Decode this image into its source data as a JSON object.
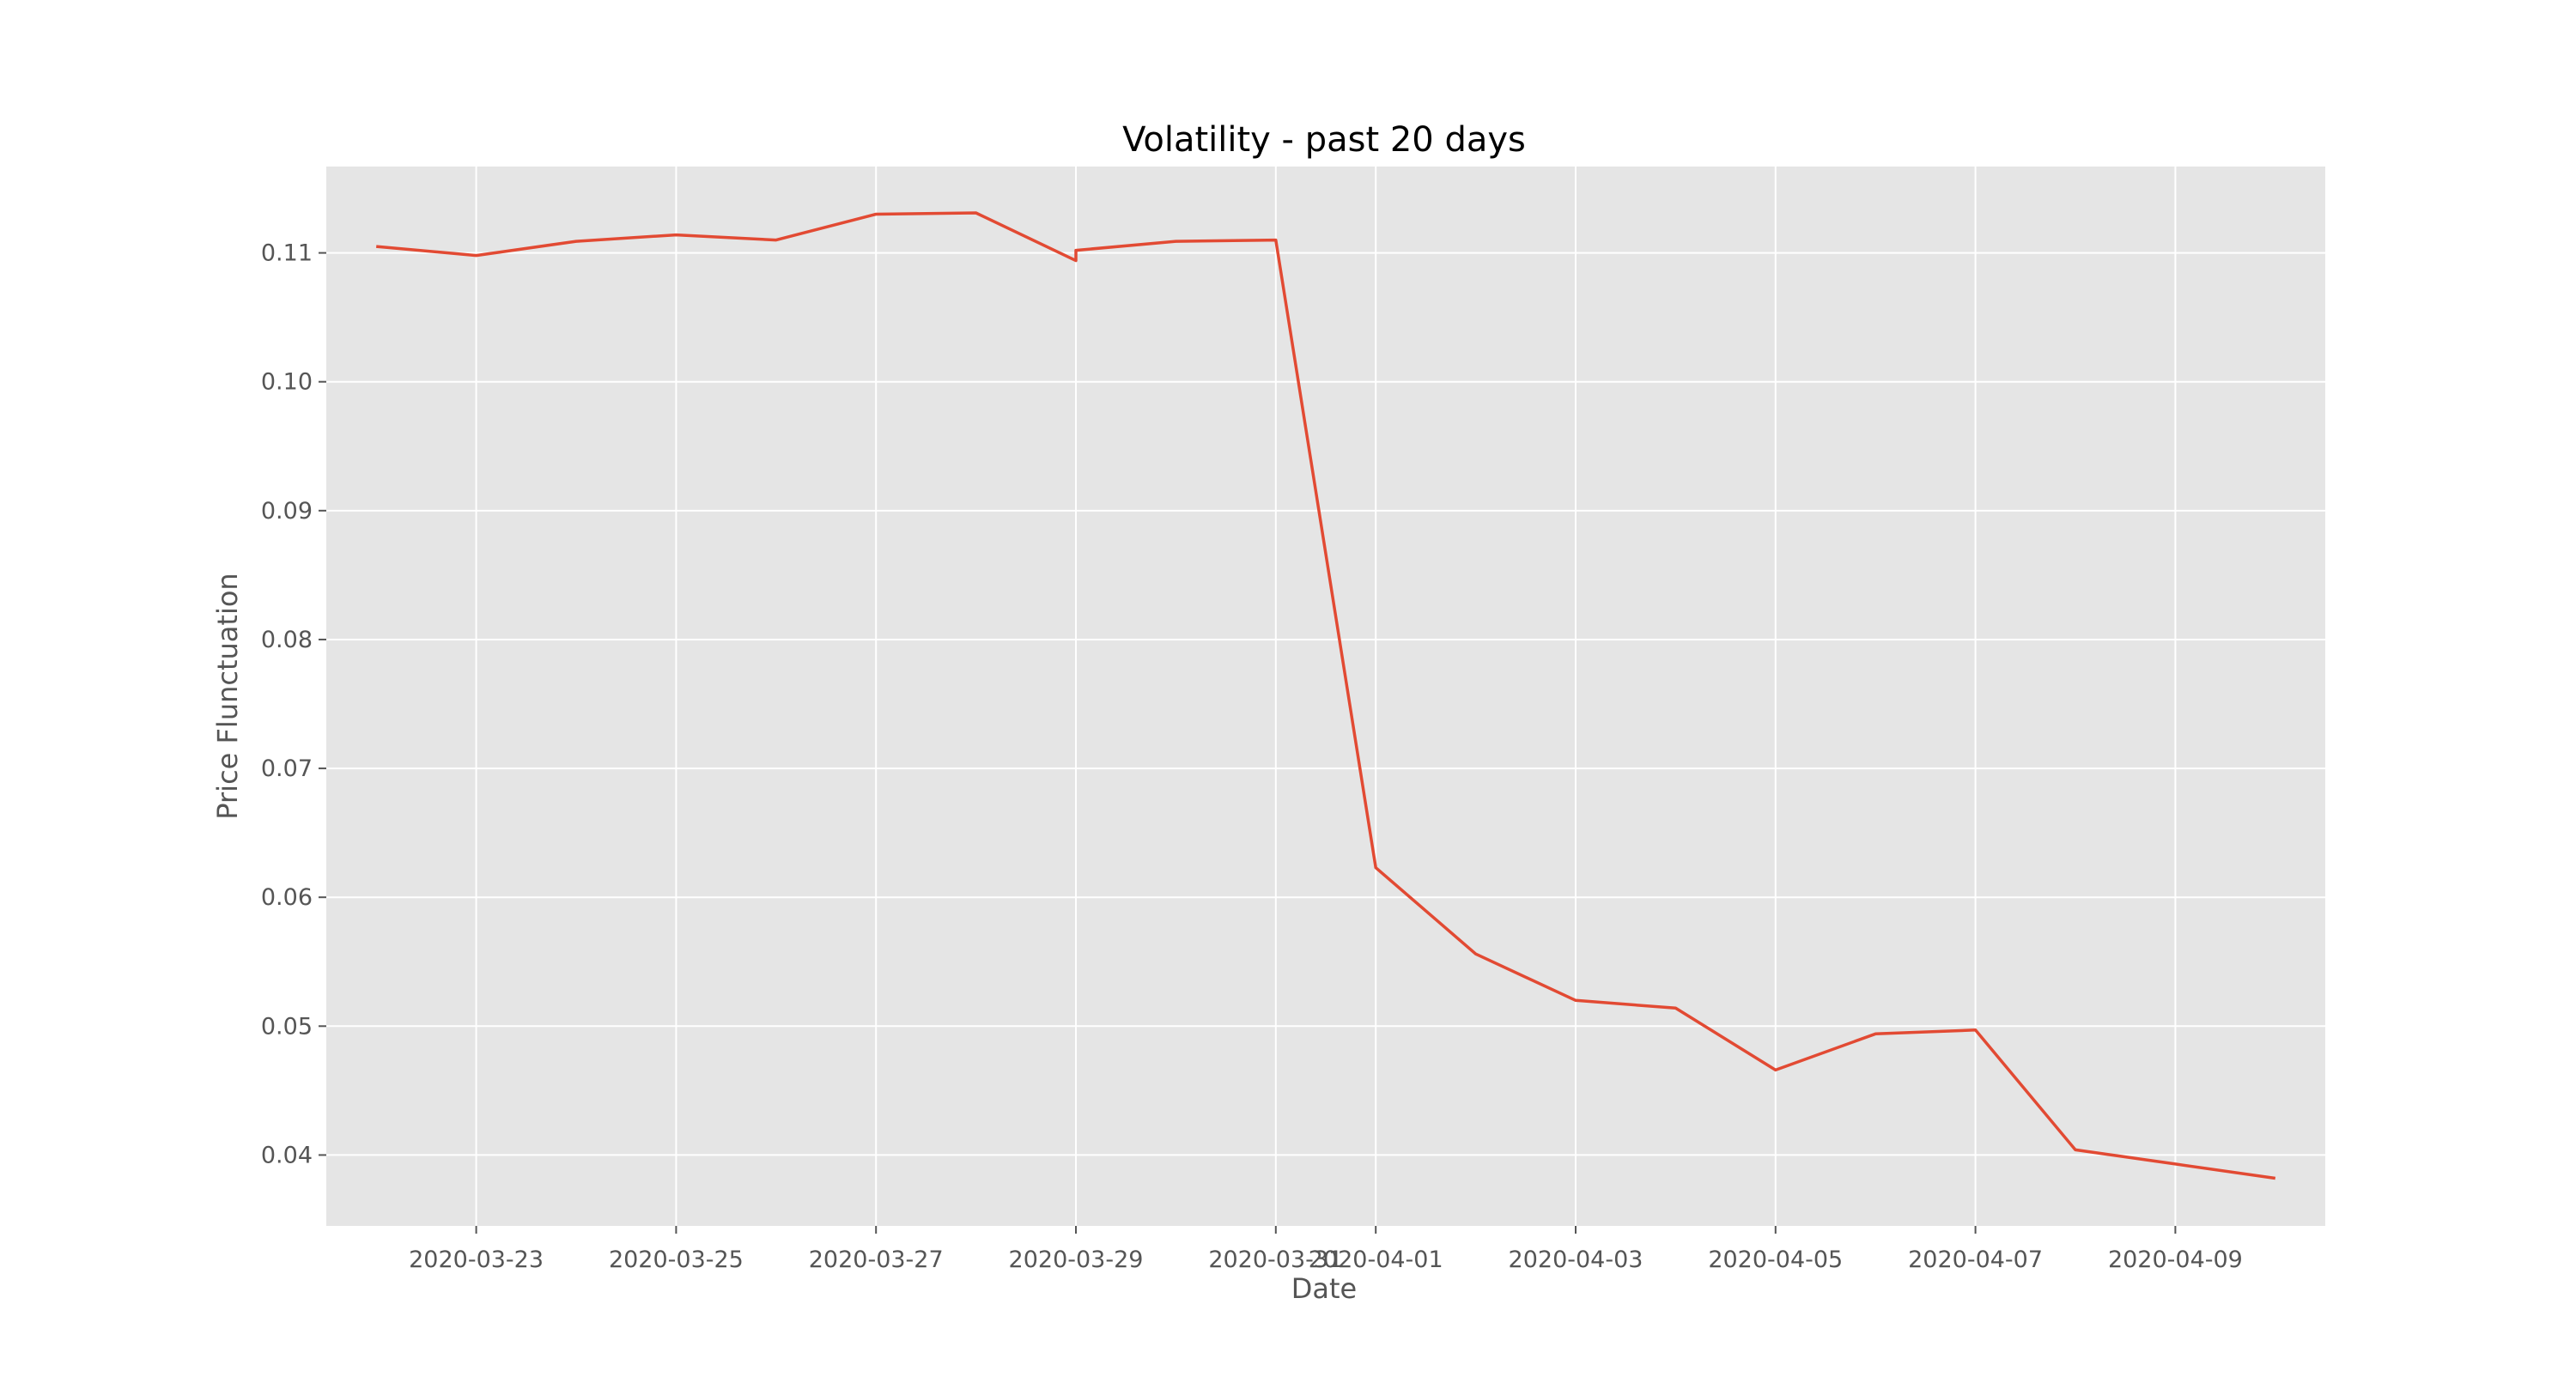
{
  "chart_data": {
    "type": "line",
    "title": "Volatility - past 20 days",
    "xlabel": "Date",
    "ylabel": "Price Flunctuation",
    "x_axis": {
      "type": "date",
      "range": [
        "2020-03-21T12:00",
        "2020-04-10T12:00"
      ],
      "ticks": [
        "2020-03-23",
        "2020-03-25",
        "2020-03-27",
        "2020-03-29",
        "2020-03-31",
        "2020-04-01",
        "2020-04-03",
        "2020-04-05",
        "2020-04-07",
        "2020-04-09"
      ]
    },
    "y_axis": {
      "range": [
        0.0345,
        0.1167
      ],
      "ticks": [
        0.04,
        0.05,
        0.06,
        0.07,
        0.08,
        0.09,
        0.1,
        0.11
      ],
      "tick_labels": [
        "0.04",
        "0.05",
        "0.06",
        "0.07",
        "0.08",
        "0.09",
        "0.10",
        "0.11"
      ]
    },
    "grid": true,
    "style": "ggplot",
    "series": [
      {
        "color": "#e24a33",
        "points": [
          {
            "x": "2020-03-22T00:00",
            "y": 0.1105
          },
          {
            "x": "2020-03-23T00:00",
            "y": 0.1098
          },
          {
            "x": "2020-03-24T00:00",
            "y": 0.1109
          },
          {
            "x": "2020-03-25T00:00",
            "y": 0.1114
          },
          {
            "x": "2020-03-26T00:00",
            "y": 0.111
          },
          {
            "x": "2020-03-27T00:00",
            "y": 0.113
          },
          {
            "x": "2020-03-28T00:00",
            "y": 0.1131
          },
          {
            "x": "2020-03-29T00:00",
            "y": 0.1094
          },
          {
            "x": "2020-03-29T00:00",
            "y": 0.1102
          },
          {
            "x": "2020-03-30T00:00",
            "y": 0.1109
          },
          {
            "x": "2020-03-31T00:00",
            "y": 0.111
          },
          {
            "x": "2020-04-01T00:00",
            "y": 0.0623
          },
          {
            "x": "2020-04-02T00:00",
            "y": 0.0556
          },
          {
            "x": "2020-04-03T00:00",
            "y": 0.052
          },
          {
            "x": "2020-04-04T00:00",
            "y": 0.0514
          },
          {
            "x": "2020-04-05T00:00",
            "y": 0.0466
          },
          {
            "x": "2020-04-06T00:00",
            "y": 0.0494
          },
          {
            "x": "2020-04-07T00:00",
            "y": 0.0497
          },
          {
            "x": "2020-04-08T00:00",
            "y": 0.0404
          },
          {
            "x": "2020-04-09T00:00",
            "y": 0.0393
          },
          {
            "x": "2020-04-10T00:00",
            "y": 0.0382
          }
        ]
      }
    ]
  }
}
